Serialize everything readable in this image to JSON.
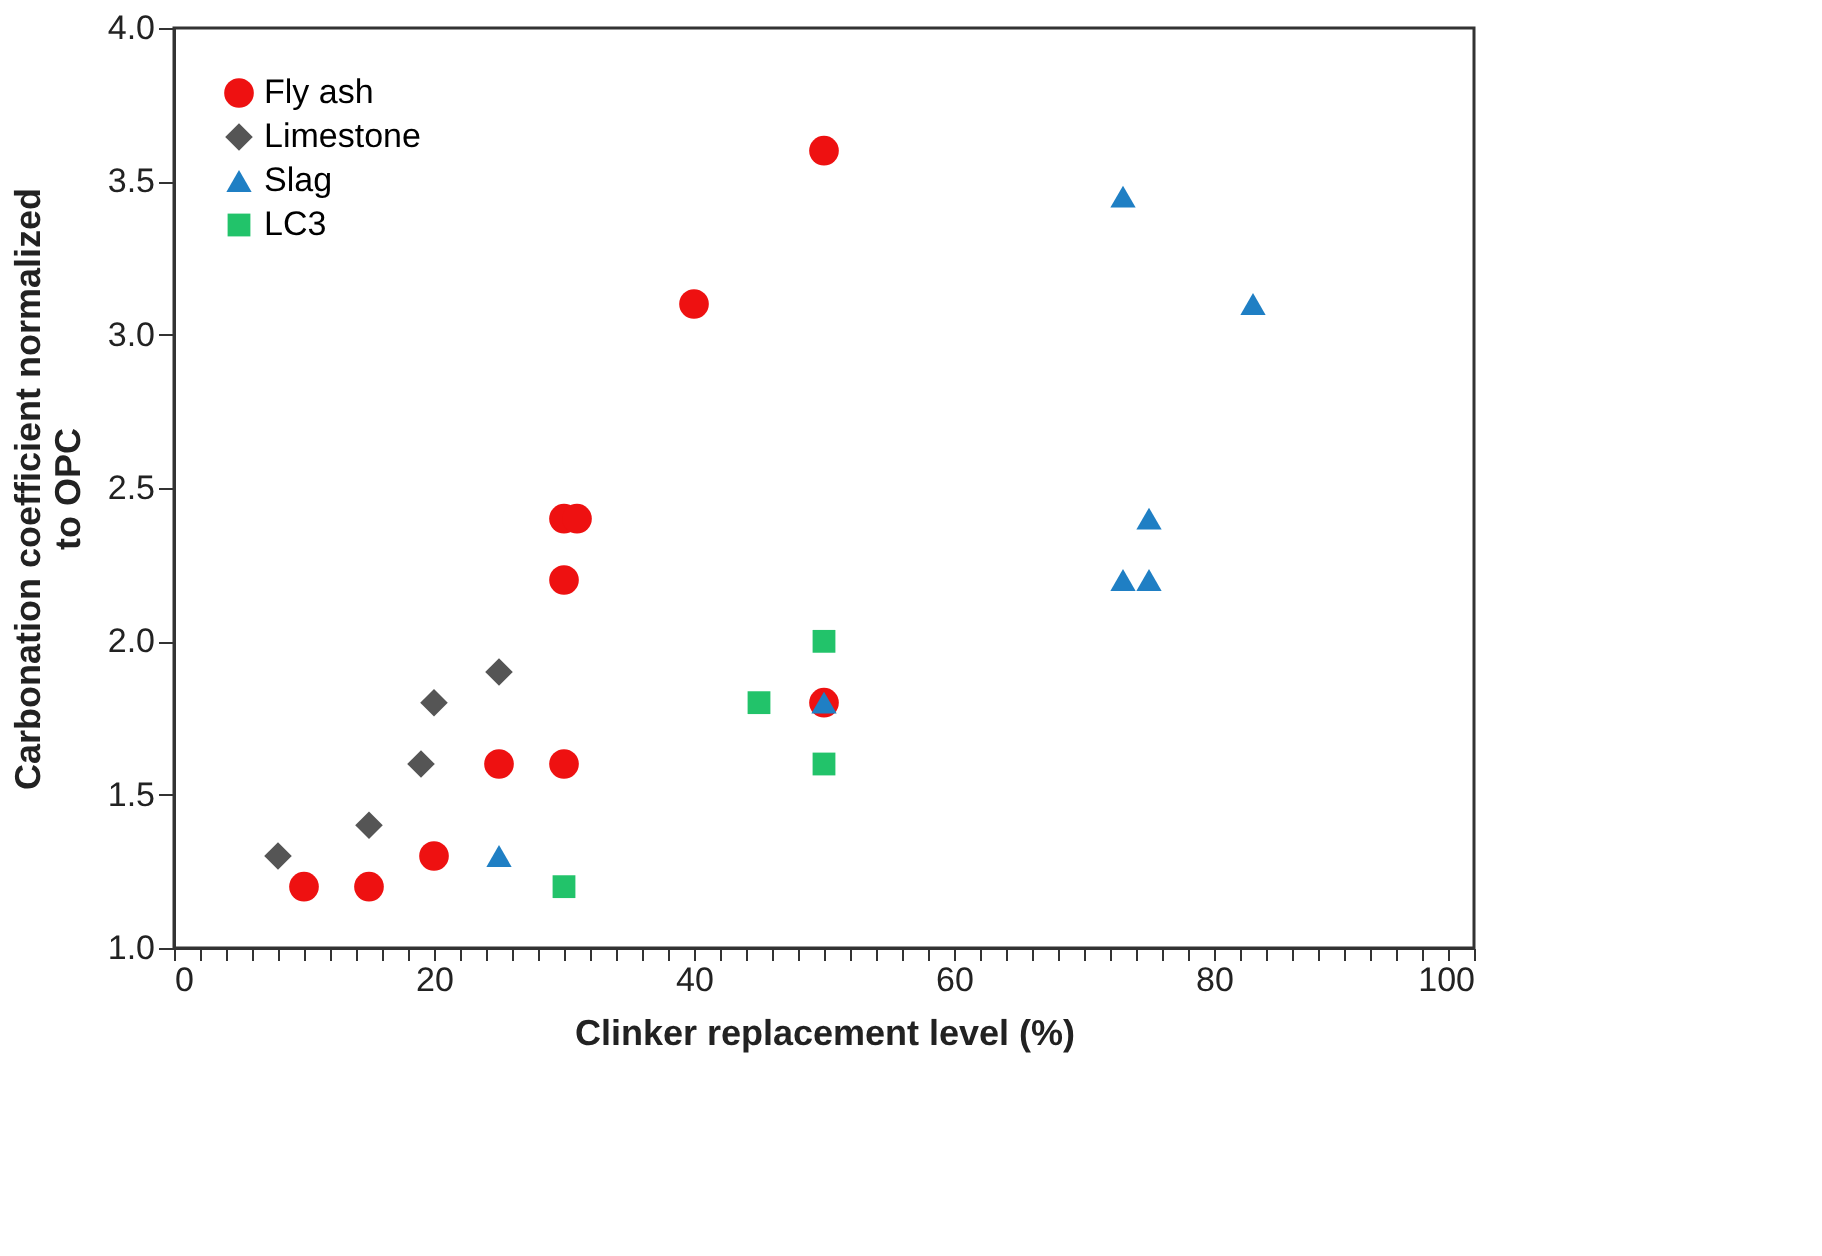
{
  "chart_data": {
    "type": "scatter",
    "xlabel": "Clinker replacement level (%)",
    "ylabel": "Carbonation coefficient normalized to OPC",
    "xlim": [
      0,
      100
    ],
    "ylim": [
      1.0,
      4.0
    ],
    "xticks": [
      0,
      {
        "value": 2,
        "label": null
      },
      {
        "value": 4,
        "label": null
      },
      {
        "value": 6,
        "label": null
      },
      {
        "value": 8,
        "label": null
      },
      {
        "value": 10,
        "label": null
      },
      {
        "value": 12,
        "label": null
      },
      {
        "value": 14,
        "label": null
      },
      {
        "value": 16,
        "label": null
      },
      {
        "value": 18,
        "label": null
      },
      20,
      {
        "value": 22,
        "label": null
      },
      {
        "value": 24,
        "label": null
      },
      {
        "value": 26,
        "label": null
      },
      {
        "value": 28,
        "label": null
      },
      {
        "value": 30,
        "label": null
      },
      {
        "value": 32,
        "label": null
      },
      {
        "value": 34,
        "label": null
      },
      {
        "value": 36,
        "label": null
      },
      {
        "value": 38,
        "label": null
      },
      40,
      {
        "value": 42,
        "label": null
      },
      {
        "value": 44,
        "label": null
      },
      {
        "value": 46,
        "label": null
      },
      {
        "value": 48,
        "label": null
      },
      {
        "value": 50,
        "label": null
      },
      {
        "value": 52,
        "label": null
      },
      {
        "value": 54,
        "label": null
      },
      {
        "value": 56,
        "label": null
      },
      {
        "value": 58,
        "label": null
      },
      60,
      {
        "value": 62,
        "label": null
      },
      {
        "value": 64,
        "label": null
      },
      {
        "value": 66,
        "label": null
      },
      {
        "value": 68,
        "label": null
      },
      {
        "value": 70,
        "label": null
      },
      {
        "value": 72,
        "label": null
      },
      {
        "value": 74,
        "label": null
      },
      {
        "value": 76,
        "label": null
      },
      {
        "value": 78,
        "label": null
      },
      80,
      {
        "value": 82,
        "label": null
      },
      {
        "value": 84,
        "label": null
      },
      {
        "value": 86,
        "label": null
      },
      {
        "value": 88,
        "label": null
      },
      {
        "value": 90,
        "label": null
      },
      {
        "value": 92,
        "label": null
      },
      {
        "value": 94,
        "label": null
      },
      {
        "value": 96,
        "label": null
      },
      {
        "value": 98,
        "label": null
      },
      100
    ],
    "yticks": [
      {
        "value": 1,
        "label": "1.0"
      },
      1.5,
      {
        "value": 2,
        "label": "2.0"
      },
      2.5,
      {
        "value": 3,
        "label": "3.0"
      },
      3.5,
      {
        "value": 4,
        "label": "4.0"
      }
    ],
    "grid": false,
    "legend": "top left",
    "series": [
      {
        "name": "Fly ash",
        "color": "#ee1111",
        "marker": "circle",
        "x": [
          10,
          15,
          20,
          25,
          30,
          30,
          30,
          31,
          40,
          50,
          50
        ],
        "values": [
          1.2,
          1.2,
          1.3,
          1.6,
          1.6,
          2.2,
          2.4,
          2.4,
          3.1,
          3.6,
          1.8
        ]
      },
      {
        "name": "Limestone",
        "color": "#555555",
        "marker": "diamond",
        "x": [
          8,
          15,
          19,
          20,
          25
        ],
        "values": [
          1.3,
          1.4,
          1.6,
          1.8,
          1.9
        ]
      },
      {
        "name": "Slag",
        "color": "#1f7fc4",
        "marker": "triangle",
        "x": [
          25,
          50,
          73,
          83,
          75,
          73,
          75
        ],
        "values": [
          1.3,
          1.8,
          3.45,
          3.1,
          2.4,
          2.2,
          2.2
        ]
      },
      {
        "name": "LC3",
        "color": "#22c36a",
        "marker": "square",
        "x": [
          30,
          45,
          50,
          50
        ],
        "values": [
          1.2,
          1.8,
          2.0,
          1.6
        ]
      }
    ]
  }
}
